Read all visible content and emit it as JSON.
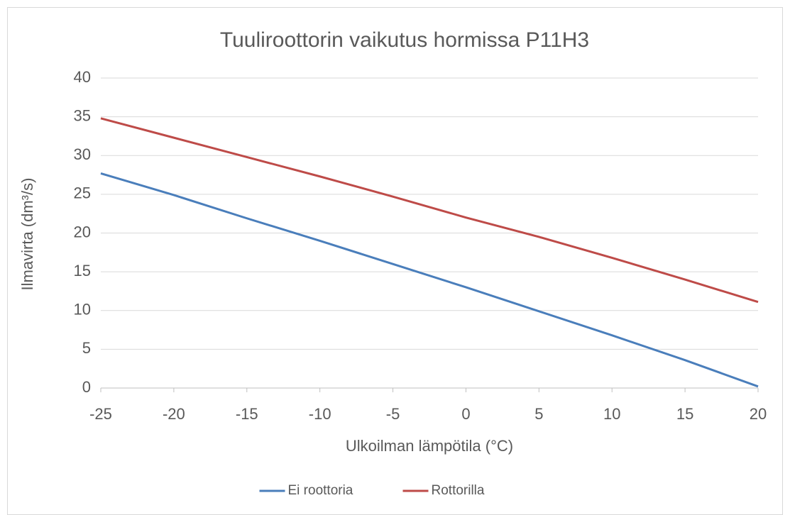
{
  "chart_data": {
    "type": "line",
    "title": "Tuuliroottorin vaikutus hormissa P11H3",
    "x_label": "Ulkoilman lämpötila (°C)",
    "y_label": "Ilmavirta (dm³/s)",
    "x": [
      -25,
      -20,
      -15,
      -10,
      -5,
      0,
      5,
      10,
      15,
      20
    ],
    "series": [
      {
        "name": "Ei roottoria",
        "color": "#4a7ebb",
        "values": [
          27.7,
          24.9,
          21.9,
          19.0,
          16.0,
          13.0,
          9.9,
          6.8,
          3.6,
          0.2
        ]
      },
      {
        "name": "Rottorilla",
        "color": "#be4b48",
        "values": [
          34.8,
          32.3,
          29.8,
          27.3,
          24.7,
          22.0,
          19.5,
          16.8,
          14.0,
          11.1
        ]
      }
    ],
    "xlim": [
      -25,
      20
    ],
    "xticks": [
      -25,
      -20,
      -15,
      -10,
      -5,
      0,
      5,
      10,
      15,
      20
    ],
    "ylim": [
      0,
      40
    ],
    "yticks": [
      0,
      5,
      10,
      15,
      20,
      25,
      30,
      35,
      40
    ],
    "grid": true,
    "legend": "bottom"
  }
}
